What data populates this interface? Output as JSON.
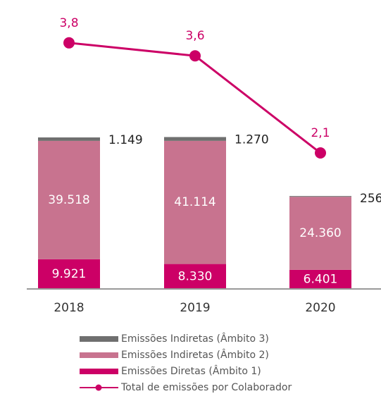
{
  "chart_data": {
    "type": "bar",
    "categories": [
      "2018",
      "2019",
      "2020"
    ],
    "series": [
      {
        "name": "Emissões Diretas (Âmbito 1)",
        "color": "#cc0066",
        "values": [
          9921,
          8330,
          6401
        ],
        "value_labels": [
          "9.921",
          "8.330",
          "6.401"
        ]
      },
      {
        "name": "Emissões Indiretas (Âmbito 2)",
        "color": "#c8738f",
        "values": [
          39518,
          41114,
          24360
        ],
        "value_labels": [
          "39.518",
          "41.114",
          "24.360"
        ]
      },
      {
        "name": "Emissões Indiretas (Âmbito 3)",
        "color": "#6f6f6f",
        "values": [
          1149,
          1270,
          256
        ],
        "value_labels": [
          "1.149",
          "1.270",
          "256"
        ]
      },
      {
        "name": "Total de emissões por Colaborador",
        "type": "line",
        "axis": "y2",
        "color": "#cc0066",
        "values": [
          3.8,
          3.6,
          2.1
        ],
        "value_labels": [
          "3,8",
          "3,6",
          "2,1"
        ]
      }
    ],
    "ylim": [
      0,
      80000
    ],
    "y2lim": [
      0,
      3.7
    ]
  }
}
